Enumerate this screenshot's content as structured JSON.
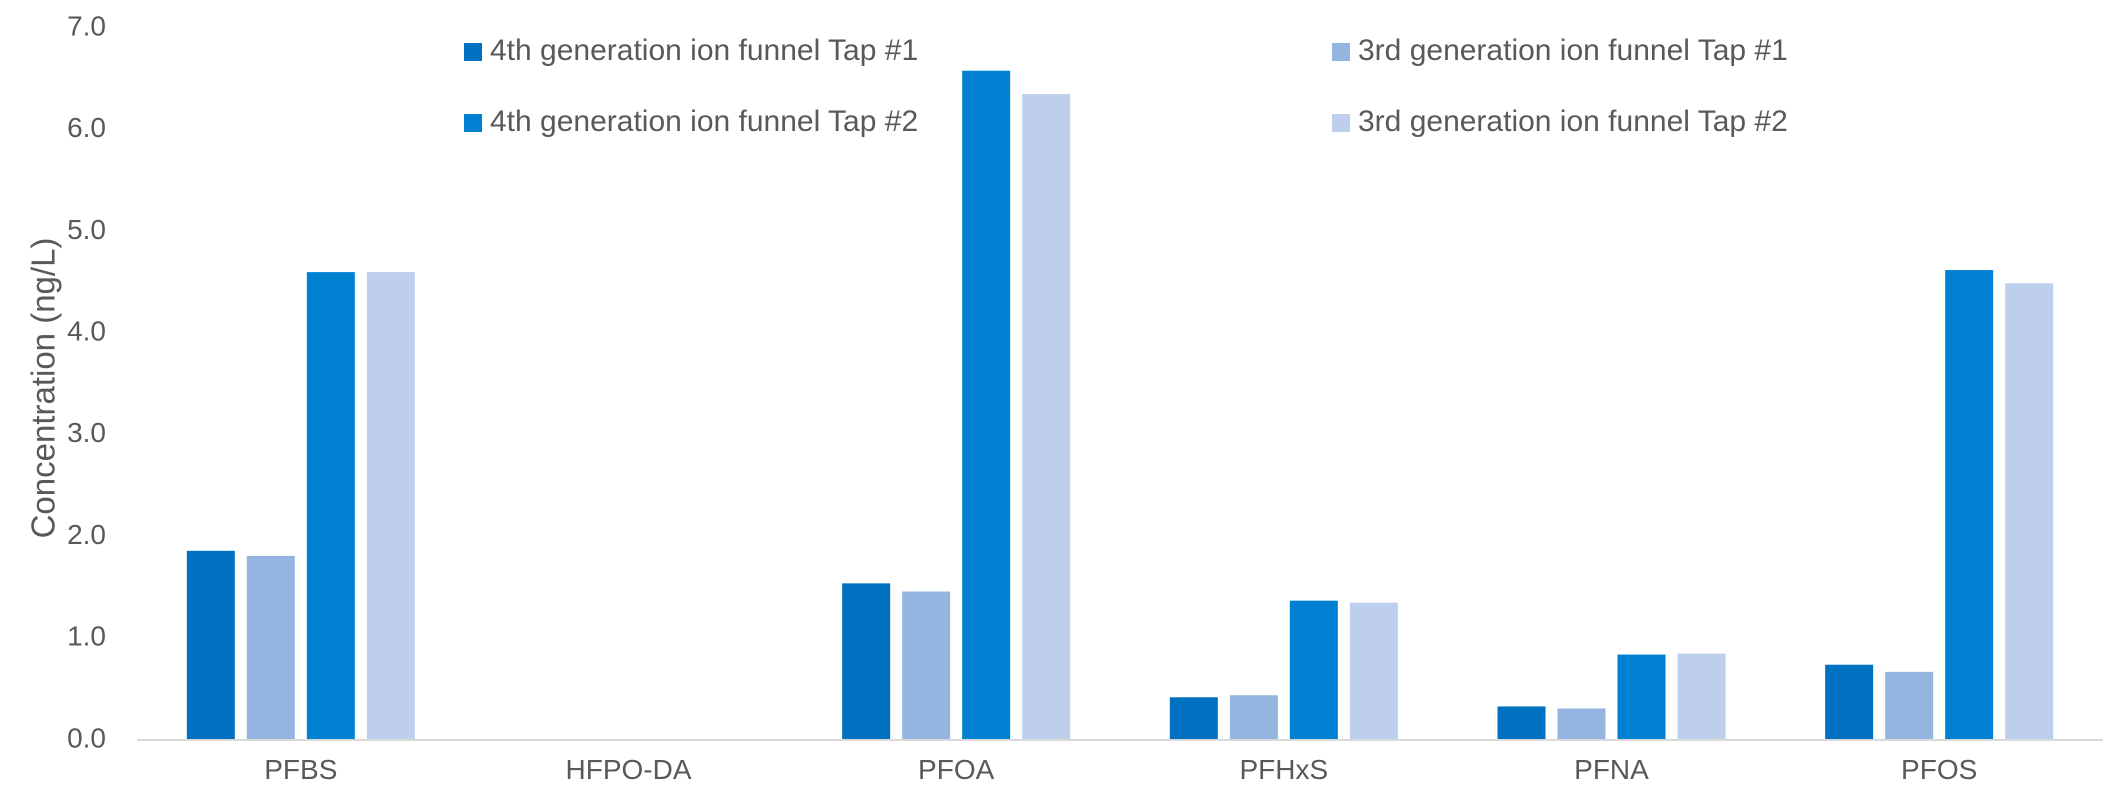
{
  "chart_data": {
    "type": "bar",
    "title": "",
    "xlabel": "",
    "ylabel": "Concentration (ng/L)",
    "ylim": [
      0,
      7
    ],
    "y_ticks": [
      "0.0",
      "1.0",
      "2.0",
      "3.0",
      "4.0",
      "5.0",
      "6.0",
      "7.0"
    ],
    "grid": false,
    "legend_position": "top",
    "categories": [
      "PFBS",
      "HFPO-DA",
      "PFOA",
      "PFHxS",
      "PFNA",
      "PFOS"
    ],
    "series": [
      {
        "name": "4th generation ion funnel Tap #1",
        "color": "#0070C0",
        "values": [
          1.86,
          0,
          1.54,
          0.42,
          0.33,
          0.74
        ]
      },
      {
        "name": "3rd generation ion funnel Tap #1",
        "color": "#95B5E1",
        "values": [
          1.81,
          0,
          1.46,
          0.44,
          0.31,
          0.67
        ]
      },
      {
        "name": "4th generation ion funnel Tap #2",
        "color": "#0080D0",
        "values": [
          4.6,
          0,
          6.58,
          1.37,
          0.84,
          4.62
        ]
      },
      {
        "name": "3rd generation ion funnel Tap #2",
        "color": "#BDCFEB",
        "values": [
          4.6,
          0,
          6.35,
          1.35,
          0.85,
          4.49
        ]
      }
    ]
  }
}
